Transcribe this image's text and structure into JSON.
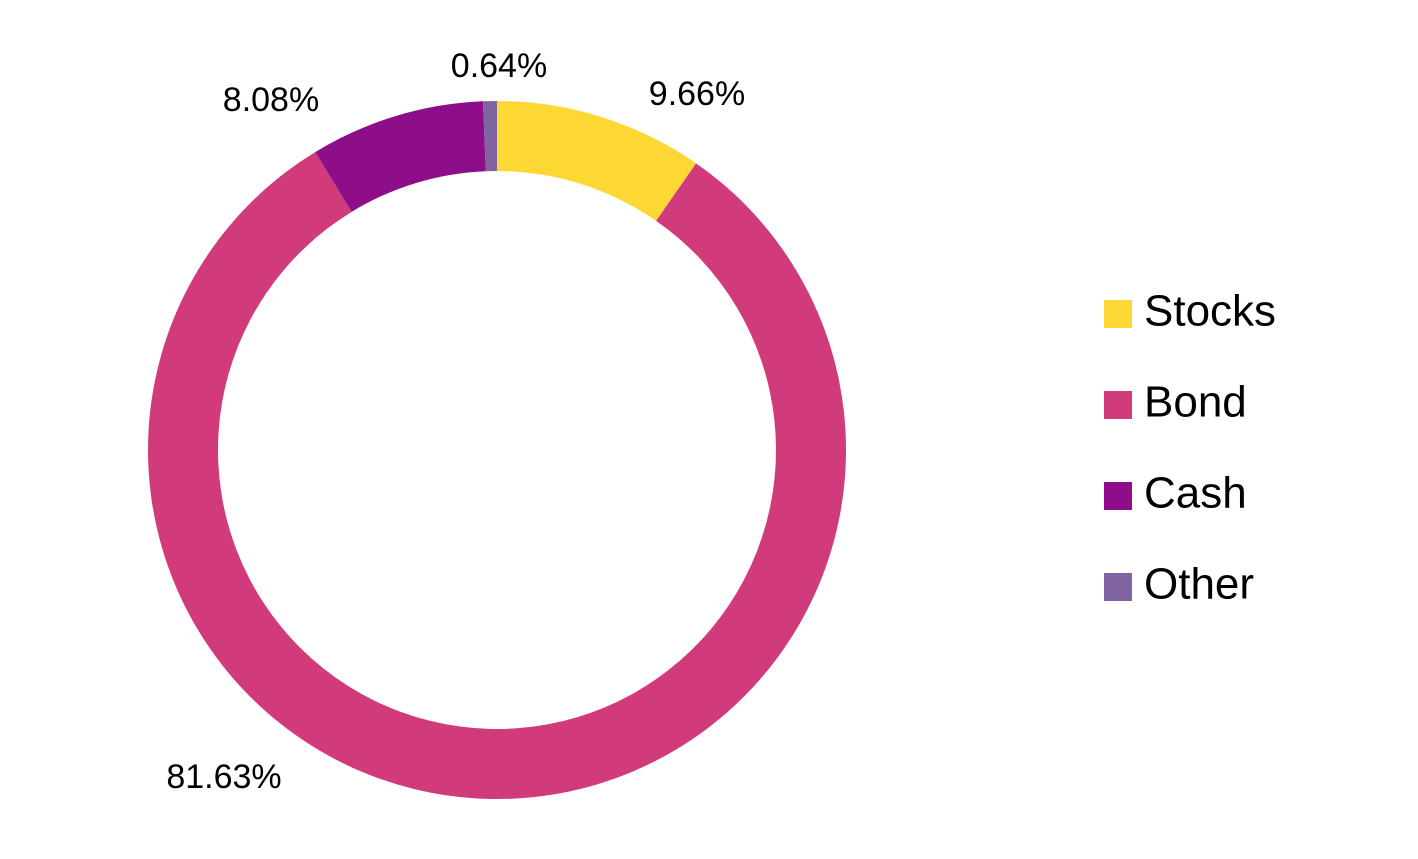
{
  "chart_data": {
    "type": "pie",
    "variant": "donut",
    "categories": [
      "Stocks",
      "Bond",
      "Cash",
      "Other"
    ],
    "values": [
      9.66,
      81.63,
      8.08,
      0.64
    ],
    "value_labels": [
      "9.66%",
      "81.63%",
      "8.08%",
      "0.64%"
    ],
    "colors": [
      "#FDD835",
      "#D13A7B",
      "#8E0E8A",
      "#8064A2"
    ],
    "legend": {
      "position": "right",
      "items": [
        "Stocks",
        "Bond",
        "Cash",
        "Other"
      ]
    },
    "start_angle": "12 o'clock",
    "direction": "clockwise",
    "title": ""
  }
}
